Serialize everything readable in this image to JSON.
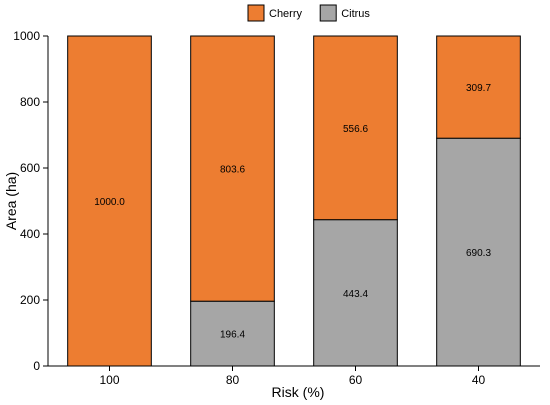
{
  "chart_data": {
    "type": "bar",
    "stacked": true,
    "categories": [
      "100",
      "80",
      "60",
      "40"
    ],
    "series": [
      {
        "name": "Citrus",
        "values": [
          0,
          196.4,
          443.4,
          690.3
        ],
        "labels": [
          "",
          "196.4",
          "443.4",
          "690.3"
        ],
        "color": "#a6a6a6"
      },
      {
        "name": "Cherry",
        "values": [
          1000.0,
          803.6,
          556.6,
          309.7
        ],
        "labels": [
          "1000.0",
          "803.6",
          "556.6",
          "309.7"
        ],
        "color": "#ed7d31"
      }
    ],
    "xlabel": "Risk (%)",
    "ylabel": "Area (ha)",
    "ylim": [
      0,
      1000
    ],
    "yticks": [
      "0",
      "200",
      "400",
      "600",
      "800",
      "1000"
    ],
    "legend": {
      "position": "top-center",
      "entries": [
        "Cherry",
        "Citrus"
      ]
    },
    "grid": false
  }
}
